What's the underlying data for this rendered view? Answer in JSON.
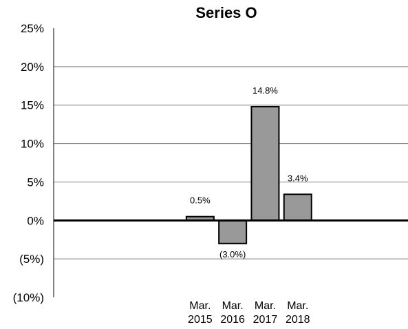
{
  "chart_data": {
    "type": "bar",
    "title": "Series O",
    "xlabel": "",
    "ylabel": "",
    "ylim": [
      -10,
      25
    ],
    "y_ticks": [
      25,
      20,
      15,
      10,
      5,
      0,
      -5,
      -10
    ],
    "y_tick_labels": [
      "25%",
      "20%",
      "15%",
      "10%",
      "5%",
      "0%",
      "(5%)",
      "(10%)"
    ],
    "category_slots": 8,
    "categories": [
      [
        "Mar.",
        "2015"
      ],
      [
        "Mar.",
        "2016"
      ],
      [
        "Mar.",
        "2017"
      ],
      [
        "Mar.",
        "2018"
      ]
    ],
    "values": [
      0.5,
      -3.0,
      14.8,
      3.4
    ],
    "data_labels": [
      "0.5%",
      "(3.0%)",
      "14.8%",
      "3.4%"
    ],
    "grid": true,
    "legend": "none",
    "colors": {
      "bar": "#999999",
      "bar_border": "#000000",
      "grid": "#7f7f7f",
      "zero_line": "#000000"
    }
  }
}
